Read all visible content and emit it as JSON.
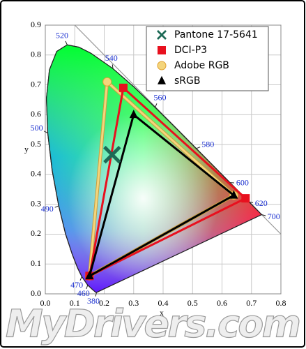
{
  "chart_data": {
    "type": "chromaticity",
    "x_label": "x",
    "y_label": "y",
    "xlim": [
      0,
      0.8
    ],
    "ylim": [
      0,
      0.9
    ],
    "xticks": [
      {
        "value": 0,
        "label": "0.0"
      },
      0.1,
      0.2,
      0.3,
      0.4,
      0.5,
      0.6,
      0.7,
      0.8
    ],
    "yticks": [
      {
        "value": 0,
        "label": "0.0"
      },
      0.1,
      0.2,
      0.3,
      0.4,
      0.5,
      0.6,
      0.7,
      0.8,
      0.9
    ],
    "grid": true,
    "legend": "upper right",
    "locus": {
      "x": [
        0.1741,
        0.1714,
        0.1644,
        0.1566,
        0.144,
        0.1241,
        0.1096,
        0.0913,
        0.0687,
        0.0454,
        0.0235,
        0.0082,
        0.0039,
        0.0139,
        0.0389,
        0.0743,
        0.1142,
        0.1547,
        0.2296,
        0.3016,
        0.3731,
        0.4441,
        0.5125,
        0.5752,
        0.627,
        0.6658,
        0.6915,
        0.719,
        0.73,
        0.7347
      ],
      "y": [
        0.005,
        0.0051,
        0.0109,
        0.0177,
        0.0297,
        0.0578,
        0.0868,
        0.1327,
        0.2007,
        0.295,
        0.4127,
        0.5384,
        0.6548,
        0.7502,
        0.812,
        0.8338,
        0.8262,
        0.8059,
        0.7543,
        0.6923,
        0.6245,
        0.5547,
        0.4866,
        0.4242,
        0.3725,
        0.334,
        0.3083,
        0.2809,
        0.27,
        0.2653
      ],
      "labels": [
        380,
        null,
        null,
        null,
        460,
        470,
        null,
        null,
        null,
        490,
        null,
        500,
        null,
        null,
        null,
        520,
        null,
        null,
        540,
        null,
        560,
        null,
        580,
        null,
        600,
        null,
        620,
        null,
        null,
        700
      ],
      "label_color": "#1a2fd0"
    },
    "series": [
      {
        "name": "Pantone 17-5641",
        "color": "#1d6a56",
        "marker": "x",
        "x": [
          0.227
        ],
        "y": [
          0.466
        ]
      },
      {
        "name": "DCI-P3",
        "color": "#e8101e",
        "marker": "square",
        "x": [
          0.68,
          0.265,
          0.15
        ],
        "y": [
          0.32,
          0.69,
          0.06
        ]
      },
      {
        "name": "Adobe RGB",
        "color": "#f4d57c",
        "marker": "circle",
        "x": [
          0.64,
          0.21,
          0.15
        ],
        "y": [
          0.33,
          0.71,
          0.06
        ]
      },
      {
        "name": "sRGB",
        "color": "#000000",
        "marker": "triangle",
        "x": [
          0.64,
          0.3,
          0.15
        ],
        "y": [
          0.33,
          0.6,
          0.06
        ]
      }
    ],
    "watermark": "MyDrivers.com"
  }
}
